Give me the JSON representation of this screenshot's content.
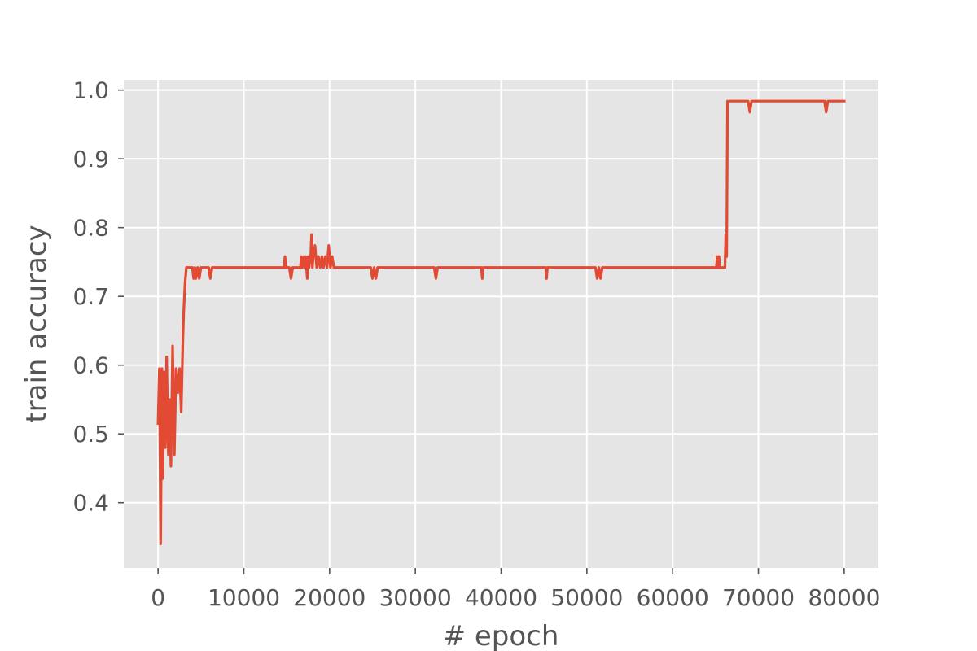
{
  "chart_data": {
    "type": "line",
    "title": "",
    "xlabel": "# epoch",
    "ylabel": "train accuracy",
    "xlim": [
      -4000,
      84000
    ],
    "ylim": [
      0.305,
      1.015
    ],
    "grid": true,
    "legend": "none",
    "colors": {
      "line": "#E24A33",
      "plot_bg": "#E5E5E5",
      "grid": "#FFFFFF",
      "text": "#555555"
    },
    "x_ticks": [
      0,
      10000,
      20000,
      30000,
      40000,
      50000,
      60000,
      70000,
      80000
    ],
    "x_tick_labels": [
      "0",
      "10000",
      "20000",
      "30000",
      "40000",
      "50000",
      "60000",
      "70000",
      "80000"
    ],
    "y_ticks": [
      0.4,
      0.5,
      0.6,
      0.7,
      0.8,
      0.9,
      1.0
    ],
    "y_tick_labels": [
      "0.4",
      "0.5",
      "0.6",
      "0.7",
      "0.8",
      "0.9",
      "1.0"
    ],
    "series": [
      {
        "name": "",
        "x": [
          0,
          150,
          300,
          450,
          550,
          700,
          850,
          1000,
          1200,
          1350,
          1500,
          1700,
          1900,
          2100,
          2300,
          2500,
          2700,
          2900,
          3000,
          3150,
          3300,
          3500,
          3700,
          4000,
          4150,
          4300,
          4400,
          4600,
          4800,
          5000,
          5300,
          5600,
          5900,
          6100,
          6300,
          6600,
          14700,
          14800,
          14900,
          15300,
          15500,
          15700,
          16600,
          16700,
          16800,
          17000,
          17100,
          17200,
          17400,
          17500,
          17600,
          17800,
          17900,
          18000,
          18100,
          18300,
          18500,
          18700,
          18900,
          19100,
          19300,
          19500,
          19700,
          19900,
          20100,
          20300,
          20500,
          20700,
          24800,
          25000,
          25200,
          25400,
          25600,
          32200,
          32400,
          32600,
          37700,
          37800,
          37900,
          45200,
          45300,
          45400,
          51000,
          51200,
          51400,
          51600,
          51800,
          65100,
          65200,
          65300,
          65400,
          65500,
          65600,
          65800,
          66100,
          66200,
          66300,
          66400,
          66600,
          66800,
          68800,
          69000,
          69200,
          77700,
          77900,
          78100,
          80000
        ],
        "values": [
          0.515,
          0.595,
          0.34,
          0.595,
          0.435,
          0.59,
          0.48,
          0.612,
          0.47,
          0.55,
          0.453,
          0.628,
          0.47,
          0.595,
          0.56,
          0.595,
          0.532,
          0.64,
          0.68,
          0.72,
          0.742,
          0.742,
          0.742,
          0.742,
          0.726,
          0.742,
          0.726,
          0.742,
          0.726,
          0.742,
          0.742,
          0.742,
          0.742,
          0.726,
          0.742,
          0.742,
          0.742,
          0.758,
          0.742,
          0.742,
          0.726,
          0.742,
          0.742,
          0.758,
          0.742,
          0.758,
          0.742,
          0.758,
          0.726,
          0.758,
          0.742,
          0.758,
          0.79,
          0.742,
          0.758,
          0.774,
          0.742,
          0.758,
          0.742,
          0.758,
          0.742,
          0.758,
          0.742,
          0.774,
          0.742,
          0.758,
          0.742,
          0.742,
          0.742,
          0.726,
          0.742,
          0.726,
          0.742,
          0.742,
          0.726,
          0.742,
          0.742,
          0.726,
          0.742,
          0.742,
          0.726,
          0.742,
          0.742,
          0.726,
          0.742,
          0.726,
          0.742,
          0.742,
          0.758,
          0.742,
          0.758,
          0.742,
          0.742,
          0.742,
          0.742,
          0.79,
          0.758,
          0.984,
          0.984,
          0.984,
          0.984,
          0.968,
          0.984,
          0.984,
          0.968,
          0.984,
          0.984
        ]
      }
    ]
  }
}
